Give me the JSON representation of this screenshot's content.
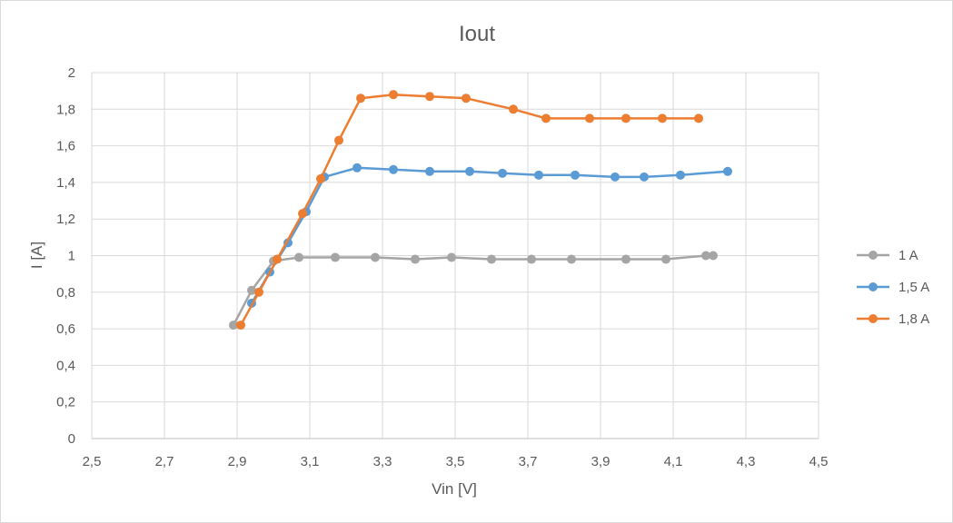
{
  "chart_data": {
    "type": "line",
    "title": "Iout",
    "xlabel": "Vin [V]",
    "ylabel": "I [A]",
    "xlim": [
      2.5,
      4.5
    ],
    "ylim": [
      0,
      2
    ],
    "x_ticks": [
      "2,5",
      "2,7",
      "2,9",
      "3,1",
      "3,3",
      "3,5",
      "3,7",
      "3,9",
      "4,1",
      "4,3",
      "4,5"
    ],
    "y_ticks": [
      "0",
      "0,2",
      "0,4",
      "0,6",
      "0,8",
      "1",
      "1,2",
      "1,4",
      "1,6",
      "1,8",
      "2"
    ],
    "grid": true,
    "legend_position": "right",
    "series": [
      {
        "name": "1 A",
        "color": "#a5a5a5",
        "points": [
          [
            2.89,
            0.62
          ],
          [
            2.94,
            0.81
          ],
          [
            3.0,
            0.97
          ],
          [
            3.07,
            0.99
          ],
          [
            3.17,
            0.99
          ],
          [
            3.28,
            0.99
          ],
          [
            3.39,
            0.98
          ],
          [
            3.49,
            0.99
          ],
          [
            3.6,
            0.98
          ],
          [
            3.71,
            0.98
          ],
          [
            3.82,
            0.98
          ],
          [
            3.97,
            0.98
          ],
          [
            4.08,
            0.98
          ],
          [
            4.19,
            1.0
          ],
          [
            4.21,
            1.0
          ]
        ]
      },
      {
        "name": "1,5 A",
        "color": "#5b9bd5",
        "points": [
          [
            2.94,
            0.74
          ],
          [
            2.99,
            0.91
          ],
          [
            3.04,
            1.07
          ],
          [
            3.09,
            1.24
          ],
          [
            3.14,
            1.43
          ],
          [
            3.23,
            1.48
          ],
          [
            3.33,
            1.47
          ],
          [
            3.43,
            1.46
          ],
          [
            3.54,
            1.46
          ],
          [
            3.63,
            1.45
          ],
          [
            3.73,
            1.44
          ],
          [
            3.83,
            1.44
          ],
          [
            3.94,
            1.43
          ],
          [
            4.02,
            1.43
          ],
          [
            4.12,
            1.44
          ],
          [
            4.25,
            1.46
          ]
        ]
      },
      {
        "name": "1,8 A",
        "color": "#ed7d31",
        "points": [
          [
            2.91,
            0.62
          ],
          [
            2.96,
            0.8
          ],
          [
            3.01,
            0.98
          ],
          [
            3.08,
            1.23
          ],
          [
            3.13,
            1.42
          ],
          [
            3.18,
            1.63
          ],
          [
            3.24,
            1.86
          ],
          [
            3.33,
            1.88
          ],
          [
            3.43,
            1.87
          ],
          [
            3.53,
            1.86
          ],
          [
            3.66,
            1.8
          ],
          [
            3.75,
            1.75
          ],
          [
            3.87,
            1.75
          ],
          [
            3.97,
            1.75
          ],
          [
            4.07,
            1.75
          ],
          [
            4.17,
            1.75
          ]
        ]
      }
    ]
  }
}
